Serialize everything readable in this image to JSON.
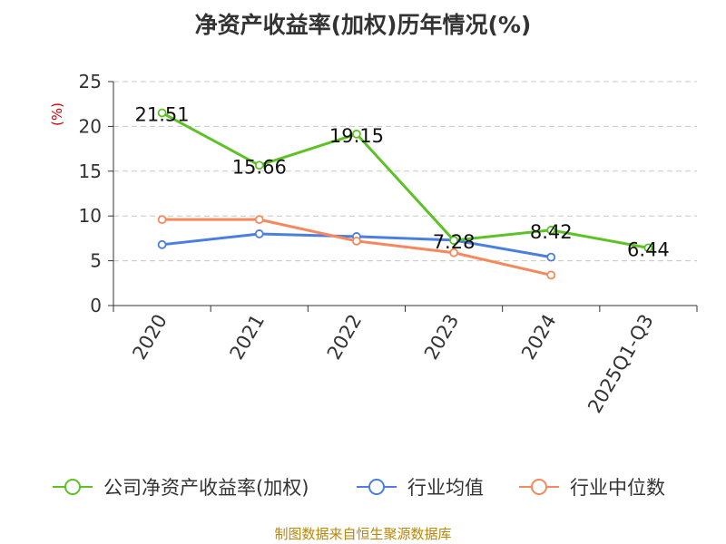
{
  "chart_data": {
    "type": "line",
    "title": "净资产收益率(加权)历年情况(%)",
    "ylabel": "(%)",
    "ylim": [
      0,
      25
    ],
    "yticks": [
      0,
      5,
      10,
      15,
      20,
      25
    ],
    "categories": [
      "2020",
      "2021",
      "2022",
      "2023",
      "2024",
      "2025Q1-Q3"
    ],
    "grid": true,
    "legend_position": "bottom",
    "series": [
      {
        "name": "公司净资产收益率(加权)",
        "color": "#5cc225",
        "values": [
          21.51,
          15.66,
          19.15,
          7.28,
          8.42,
          6.44
        ],
        "labels": [
          "21.51",
          "15.66",
          "19.15",
          "7.28",
          "8.42",
          "6.44"
        ]
      },
      {
        "name": "行业均值",
        "color": "#4a7fe0",
        "values": [
          6.8,
          8.0,
          7.7,
          7.3,
          5.4,
          null
        ]
      },
      {
        "name": "行业中位数",
        "color": "#f5885c",
        "values": [
          9.6,
          9.6,
          7.2,
          5.9,
          3.4,
          null
        ]
      }
    ]
  },
  "footer": {
    "source": "制图数据来自恒生聚源数据库"
  }
}
